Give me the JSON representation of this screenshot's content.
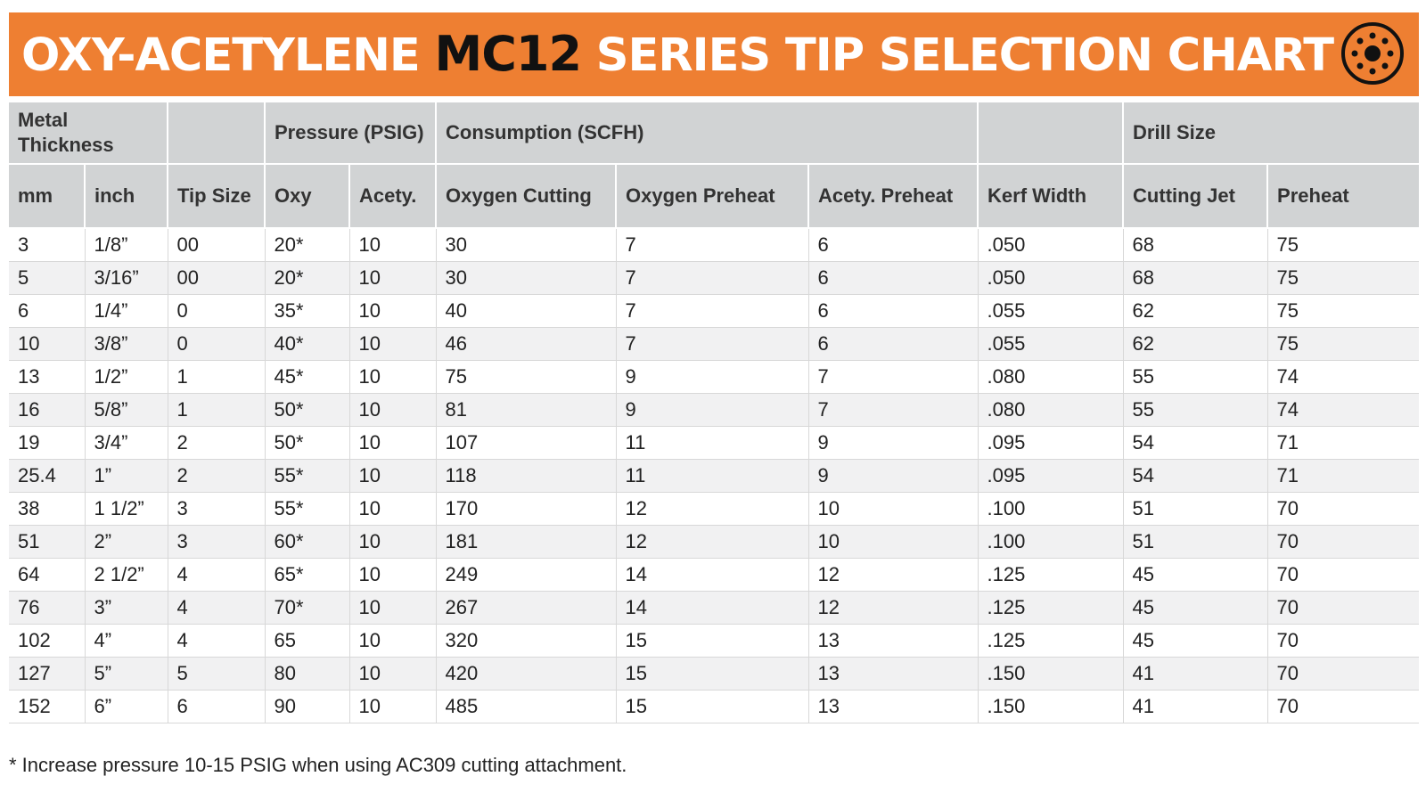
{
  "header": {
    "title_prefix": "OXY-ACETYLENE ",
    "title_model": "MC12",
    "title_suffix": " SERIES TIP SELECTION CHART",
    "logo_icon": "torch-tip-icon",
    "banner_color": "#ee7f32"
  },
  "table": {
    "group_headers": {
      "metal_thickness": "Metal Thickness",
      "pressure": "Pressure (PSIG)",
      "consumption": "Consumption (SCFH)",
      "drill_size": "Drill Size"
    },
    "columns": [
      "mm",
      "inch",
      "Tip Size",
      "Oxy",
      "Acety.",
      "Oxygen Cutting",
      "Oxygen Preheat",
      "Acety. Preheat",
      "Kerf Width",
      "Cutting Jet",
      "Preheat"
    ],
    "rows": [
      [
        "3",
        "1/8”",
        "00",
        "20*",
        "10",
        "30",
        "7",
        "6",
        ".050",
        "68",
        "75"
      ],
      [
        "5",
        "3/16”",
        "00",
        "20*",
        "10",
        "30",
        "7",
        "6",
        ".050",
        "68",
        "75"
      ],
      [
        "6",
        "1/4”",
        "0",
        "35*",
        "10",
        "40",
        "7",
        "6",
        ".055",
        "62",
        "75"
      ],
      [
        "10",
        "3/8”",
        "0",
        "40*",
        "10",
        "46",
        "7",
        "6",
        ".055",
        "62",
        "75"
      ],
      [
        "13",
        "1/2”",
        "1",
        "45*",
        "10",
        "75",
        "9",
        "7",
        ".080",
        "55",
        "74"
      ],
      [
        "16",
        "5/8”",
        "1",
        "50*",
        "10",
        "81",
        "9",
        "7",
        ".080",
        "55",
        "74"
      ],
      [
        "19",
        "3/4”",
        "2",
        "50*",
        "10",
        "107",
        "11",
        "9",
        ".095",
        "54",
        "71"
      ],
      [
        "25.4",
        "1”",
        "2",
        "55*",
        "10",
        "118",
        "11",
        "9",
        ".095",
        "54",
        "71"
      ],
      [
        "38",
        "1 1/2”",
        "3",
        "55*",
        "10",
        "170",
        "12",
        "10",
        ".100",
        "51",
        "70"
      ],
      [
        "51",
        "2”",
        "3",
        "60*",
        "10",
        "181",
        "12",
        "10",
        ".100",
        "51",
        "70"
      ],
      [
        "64",
        "2 1/2”",
        "4",
        "65*",
        "10",
        "249",
        "14",
        "12",
        ".125",
        "45",
        "70"
      ],
      [
        "76",
        "3”",
        "4",
        "70*",
        "10",
        "267",
        "14",
        "12",
        ".125",
        "45",
        "70"
      ],
      [
        "102",
        "4”",
        "4",
        "65",
        "10",
        "320",
        "15",
        "13",
        ".125",
        "45",
        "70"
      ],
      [
        "127",
        "5”",
        "5",
        "80",
        "10",
        "420",
        "15",
        "13",
        ".150",
        "41",
        "70"
      ],
      [
        "152",
        "6”",
        "6",
        "90",
        "10",
        "485",
        "15",
        "13",
        ".150",
        "41",
        "70"
      ]
    ]
  },
  "footnote": "* Increase pressure 10-15 PSIG when using AC309 cutting attachment."
}
